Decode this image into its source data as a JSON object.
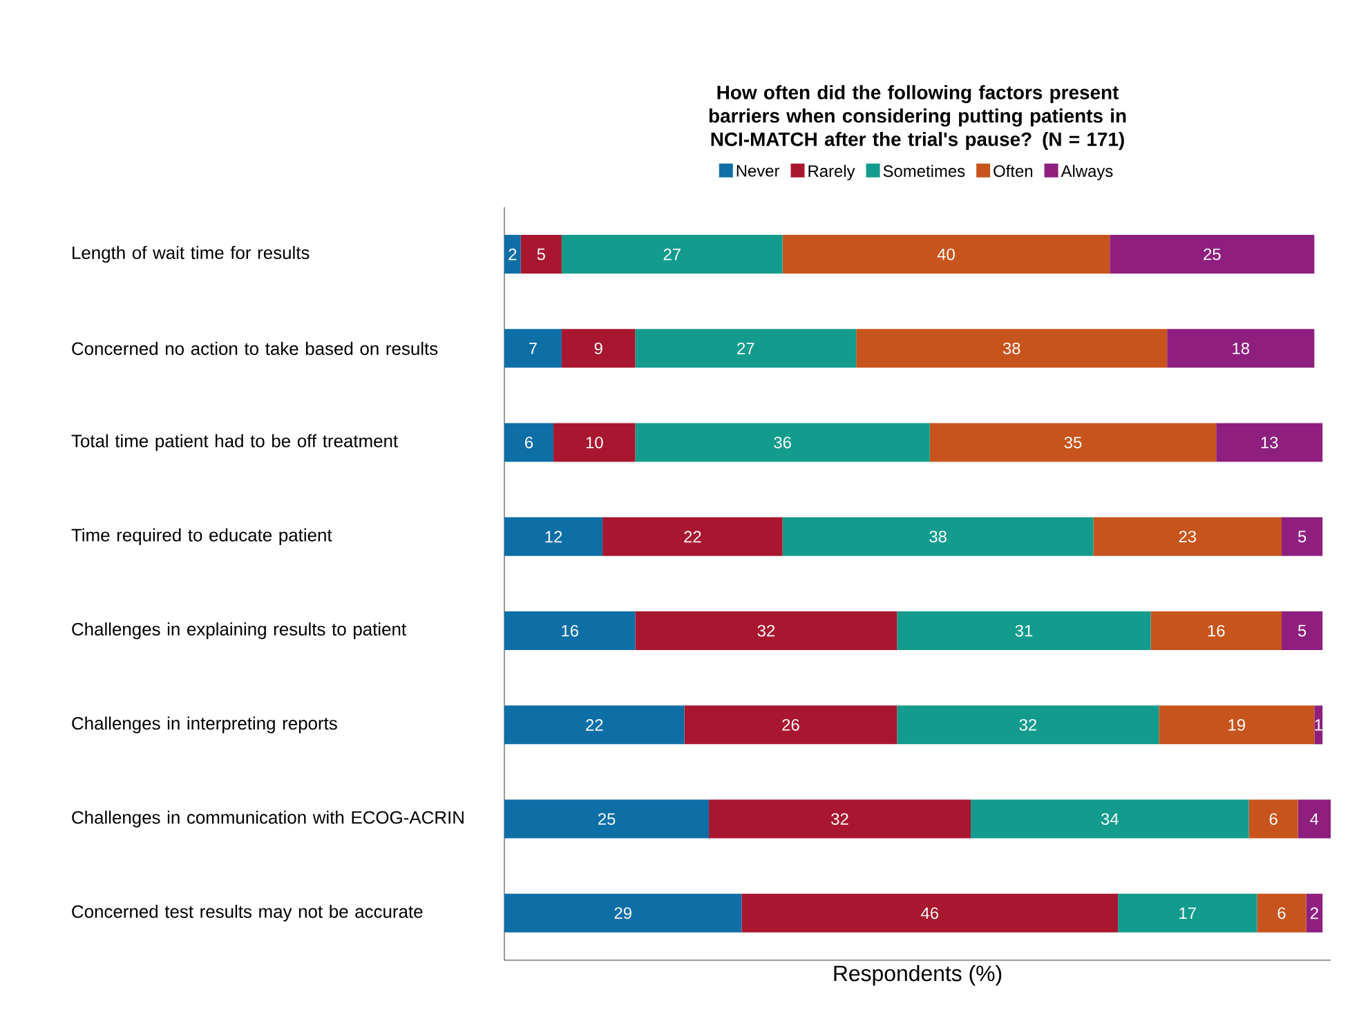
{
  "chart_data": {
    "type": "bar",
    "orientation": "horizontal",
    "stacked": true,
    "data_labels": true,
    "tick_labels": "y",
    "legend": "top",
    "grid": false,
    "title": "How often did the following factors present barriers when considering putting patients in NCI-MATCH after the trial's pause? (N = 171)",
    "xlabel": "Respondents (%)",
    "categories": [
      "Length of wait time for results",
      "Concerned no action to take based on results",
      "Total time patient had to be off treatment",
      "Time required to educate patient",
      "Challenges in explaining results to patient",
      "Challenges in interpreting reports",
      "Challenges in communication with ECOG-ACRIN",
      "Concerned test results may not be accurate"
    ],
    "series": [
      {
        "name": "Never",
        "color": "#0e6fa6",
        "values": [
          2,
          7,
          6,
          12,
          16,
          22,
          25,
          29
        ]
      },
      {
        "name": "Rarely",
        "color": "#a8172f",
        "values": [
          5,
          9,
          10,
          22,
          32,
          26,
          32,
          46
        ]
      },
      {
        "name": "Sometimes",
        "color": "#139c8e",
        "values": [
          27,
          27,
          36,
          38,
          31,
          32,
          34,
          17
        ]
      },
      {
        "name": "Often",
        "color": "#c7541c",
        "values": [
          40,
          38,
          35,
          23,
          16,
          19,
          6,
          6
        ]
      },
      {
        "name": "Always",
        "color": "#8e1f7f",
        "values": [
          25,
          18,
          13,
          5,
          5,
          1,
          4,
          2
        ]
      }
    ]
  }
}
